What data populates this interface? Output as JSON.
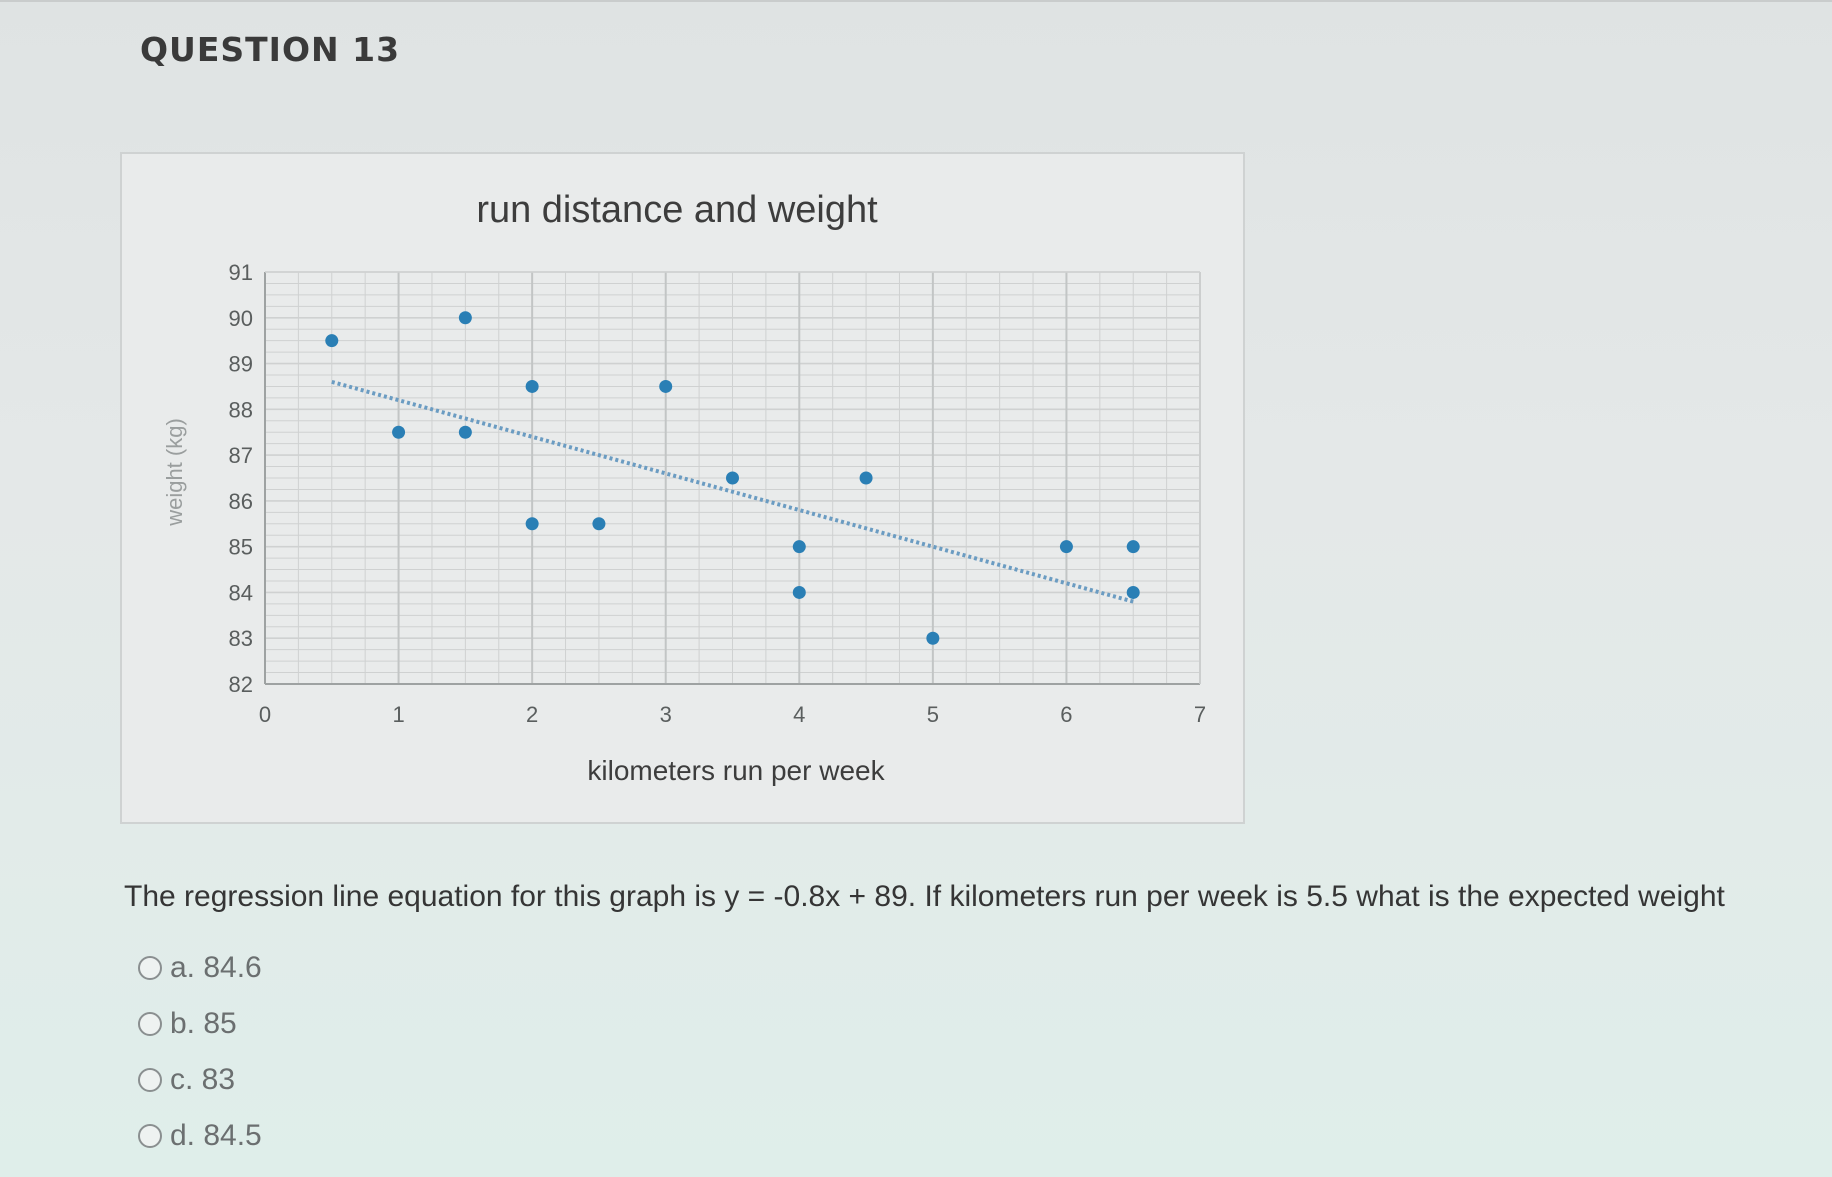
{
  "question": {
    "title": "QUESTION 13",
    "text": "The regression line equation for this graph is y = -0.8x + 89.  If kilometers run per week is 5.5 what is the expected weight",
    "options": [
      {
        "label": "a. 84.6"
      },
      {
        "label": "b. 85"
      },
      {
        "label": "c. 83"
      },
      {
        "label": "d. 84.5"
      }
    ]
  },
  "colors": {
    "point": "#2a7fb5",
    "trendline": "#6b9cc2",
    "grid": "#cfd1d1",
    "axis": "#9ea2a2"
  },
  "chart_data": {
    "type": "scatter",
    "title": "run distance and weight",
    "xlabel": "kilometers run per week",
    "ylabel": "weight (kg)",
    "xlim": [
      0,
      7
    ],
    "ylim": [
      82,
      91
    ],
    "xticks": [
      "0",
      "1",
      "2",
      "3",
      "4",
      "5",
      "6",
      "7"
    ],
    "yticks": [
      "82",
      "83",
      "84",
      "85",
      "86",
      "87",
      "88",
      "89",
      "90",
      "91"
    ],
    "grid": true,
    "points": [
      {
        "x": 0.5,
        "y": 89.5
      },
      {
        "x": 1,
        "y": 87.5
      },
      {
        "x": 1.5,
        "y": 90
      },
      {
        "x": 1.5,
        "y": 87.5
      },
      {
        "x": 2,
        "y": 88.5
      },
      {
        "x": 2,
        "y": 85.5
      },
      {
        "x": 2.5,
        "y": 85.5
      },
      {
        "x": 3,
        "y": 88.5
      },
      {
        "x": 3.5,
        "y": 86.5
      },
      {
        "x": 4,
        "y": 85
      },
      {
        "x": 4,
        "y": 84
      },
      {
        "x": 4.5,
        "y": 86.5
      },
      {
        "x": 5,
        "y": 83
      },
      {
        "x": 6,
        "y": 85
      },
      {
        "x": 6.5,
        "y": 85
      },
      {
        "x": 6.5,
        "y": 84
      }
    ],
    "trendline": {
      "slope": -0.8,
      "intercept": 89,
      "x": [
        0.5,
        6.5
      ]
    }
  }
}
